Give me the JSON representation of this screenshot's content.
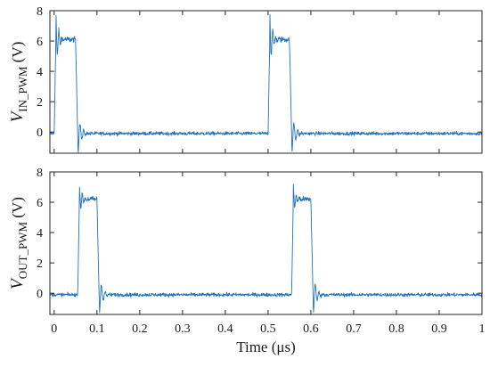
{
  "chart_data": [
    {
      "type": "line",
      "ylabel": {
        "main": "V",
        "sub": "IN_PWM",
        "unit": "(V)"
      },
      "xlabel": "",
      "xlim": [
        -0.01,
        1.0
      ],
      "ylim": [
        -1.4,
        8
      ],
      "yticks": [
        0,
        2,
        4,
        6,
        8
      ],
      "ytick_labels": [
        "0",
        "2",
        "4",
        "6",
        "8"
      ],
      "xtick_labels_shown": false,
      "grid": false,
      "color": "#1f72bd",
      "series": [
        {
          "name": "",
          "low_level": -0.1,
          "high_level": 6.1,
          "pulses": [
            {
              "rise": 0.0,
              "fall": 0.05,
              "overshoot": 7.9,
              "undershoot": -1.4
            },
            {
              "rise": 0.5,
              "fall": 0.55,
              "overshoot": 7.9,
              "undershoot": -1.4
            }
          ]
        }
      ]
    },
    {
      "type": "line",
      "ylabel": {
        "main": "V",
        "sub": "OUT_PWM",
        "unit": "(V)"
      },
      "xlabel": "Time (μs)",
      "xlim": [
        -0.01,
        1.0
      ],
      "ylim": [
        -1.4,
        8
      ],
      "yticks": [
        0,
        2,
        4,
        6,
        8
      ],
      "ytick_labels": [
        "0",
        "2",
        "4",
        "6",
        "8"
      ],
      "xticks": [
        0,
        0.1,
        0.2,
        0.3,
        0.4,
        0.5,
        0.6,
        0.7,
        0.8,
        0.9,
        1.0
      ],
      "xtick_labels": [
        "0",
        "0.1",
        "0.2",
        "0.3",
        "0.4",
        "0.5",
        "0.6",
        "0.7",
        "0.8",
        "0.9",
        "1"
      ],
      "grid": false,
      "color": "#1f72bd",
      "series": [
        {
          "name": "",
          "low_level": -0.1,
          "high_level": 6.2,
          "pulses": [
            {
              "rise": 0.055,
              "fall": 0.1,
              "overshoot": 7.1,
              "undershoot": -1.3
            },
            {
              "rise": 0.555,
              "fall": 0.6,
              "overshoot": 7.1,
              "undershoot": -1.3
            }
          ]
        }
      ]
    }
  ]
}
